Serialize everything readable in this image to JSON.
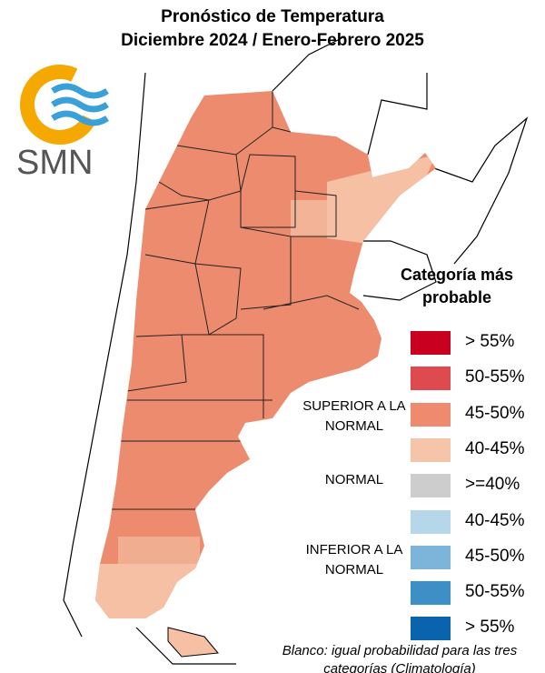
{
  "header": {
    "title": "Pronóstico de Temperatura",
    "subtitle": "Diciembre 2024 / Enero-Febrero 2025",
    "logo": "SMN"
  },
  "legend": {
    "title": "Categoría más probable",
    "groups": [
      "SUPERIOR A LA NORMAL",
      "NORMAL",
      "INFERIOR A LA NORMAL"
    ],
    "items": [
      {
        "label": "> 55%",
        "color": "#c90020"
      },
      {
        "label": "50-55%",
        "color": "#df4a4f"
      },
      {
        "label": "45-50%",
        "color": "#ee8a6d"
      },
      {
        "label": "40-45%",
        "color": "#f6c4a9"
      },
      {
        "label": ">=40%",
        "color": "#cdcdcd"
      },
      {
        "label": "40-45%",
        "color": "#b6d7ea"
      },
      {
        "label": "45-50%",
        "color": "#7db4d9"
      },
      {
        "label": "50-55%",
        "color": "#3f8fc7"
      },
      {
        "label": "> 55%",
        "color": "#0a64ad"
      }
    ]
  },
  "note": "Blanco: igual probabilidad para las tres categorías (Climatología)"
}
